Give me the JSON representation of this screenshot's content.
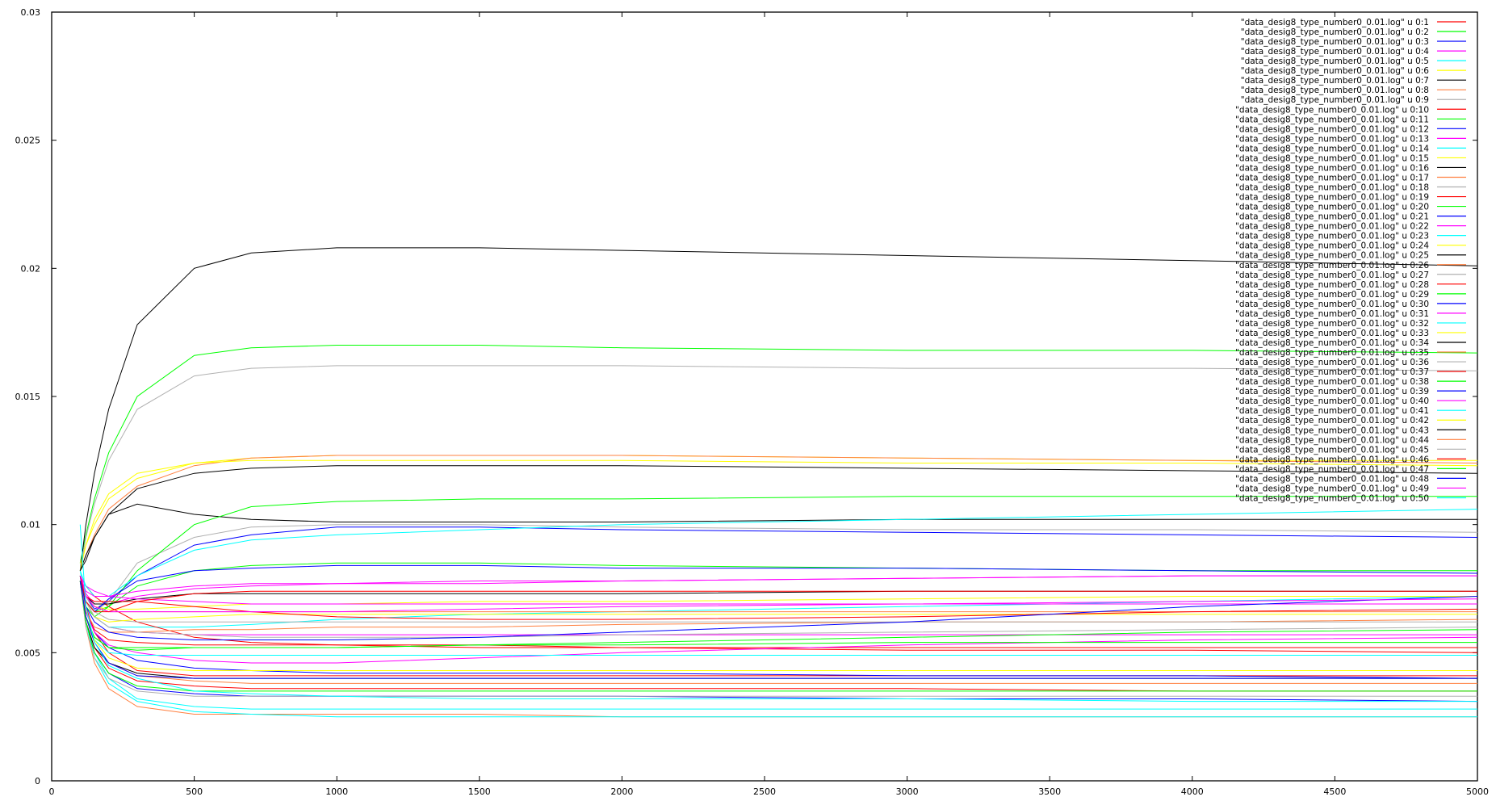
{
  "chart_data": {
    "type": "line",
    "title": "",
    "xlabel": "",
    "ylabel": "",
    "xlim": [
      0,
      5000
    ],
    "ylim": [
      0,
      0.03
    ],
    "x_ticks": [
      "0",
      "500",
      "1000",
      "1500",
      "2000",
      "2500",
      "3000",
      "3500",
      "4000",
      "4500",
      "5000"
    ],
    "y_ticks": [
      "0",
      "0.005",
      "0.01",
      "0.015",
      "0.02",
      "0.025",
      "0.03"
    ],
    "grid": false,
    "legend_position": "top-right",
    "x": [
      100,
      120,
      150,
      200,
      300,
      500,
      700,
      1000,
      1500,
      2000,
      3000,
      4000,
      5000
    ],
    "series": [
      {
        "name": "\"data_desig8_type_number0_0.01.log\" u 0:1",
        "color": "#ff0000",
        "values": [
          0.008,
          0.0068,
          0.0058,
          0.005,
          0.0043,
          0.0041,
          0.0041,
          0.0041,
          0.0041,
          0.0041,
          0.0041,
          0.0041,
          0.0041
        ]
      },
      {
        "name": "\"data_desig8_type_number0_0.01.log\" u 0:2",
        "color": "#00ff00",
        "values": [
          0.0085,
          0.0096,
          0.011,
          0.0128,
          0.015,
          0.0166,
          0.0169,
          0.017,
          0.017,
          0.0169,
          0.0168,
          0.0168,
          0.0167
        ]
      },
      {
        "name": "\"data_desig8_type_number0_0.01.log\" u 0:3",
        "color": "#0000ff",
        "values": [
          0.008,
          0.0072,
          0.0067,
          0.007,
          0.008,
          0.0092,
          0.0096,
          0.0099,
          0.0099,
          0.0098,
          0.0097,
          0.0096,
          0.0095
        ]
      },
      {
        "name": "\"data_desig8_type_number0_0.01.log\" u 0:4",
        "color": "#ff00ff",
        "values": [
          0.008,
          0.0073,
          0.0069,
          0.0069,
          0.0072,
          0.0075,
          0.0076,
          0.0077,
          0.0077,
          0.0078,
          0.0079,
          0.008,
          0.008
        ]
      },
      {
        "name": "\"data_desig8_type_number0_0.01.log\" u 0:5",
        "color": "#00ffff",
        "values": [
          0.008,
          0.0062,
          0.005,
          0.004,
          0.0032,
          0.0029,
          0.0028,
          0.0028,
          0.0028,
          0.0028,
          0.0028,
          0.0028,
          0.0028
        ]
      },
      {
        "name": "\"data_desig8_type_number0_0.01.log\" u 0:6",
        "color": "#ffff00",
        "values": [
          0.0085,
          0.0092,
          0.01,
          0.011,
          0.0118,
          0.0124,
          0.0126,
          0.0127,
          0.0127,
          0.0127,
          0.0126,
          0.0125,
          0.0125
        ]
      },
      {
        "name": "\"data_desig8_type_number0_0.01.log\" u 0:7",
        "color": "#000000",
        "values": [
          0.0082,
          0.01,
          0.012,
          0.0145,
          0.0178,
          0.02,
          0.0206,
          0.0208,
          0.0208,
          0.0207,
          0.0205,
          0.0203,
          0.0201
        ]
      },
      {
        "name": "\"data_desig8_type_number0_0.01.log\" u 0:8",
        "color": "#ff8040",
        "values": [
          0.0082,
          0.0088,
          0.0096,
          0.0106,
          0.0115,
          0.0123,
          0.0126,
          0.0127,
          0.0127,
          0.0127,
          0.0126,
          0.0125,
          0.0124
        ]
      },
      {
        "name": "\"data_desig8_type_number0_0.01.log\" u 0:9",
        "color": "#b0b0b0",
        "values": [
          0.0082,
          0.0095,
          0.0108,
          0.0125,
          0.0145,
          0.0158,
          0.0161,
          0.0162,
          0.0162,
          0.0162,
          0.0161,
          0.0161,
          0.016
        ]
      },
      {
        "name": "\"data_desig8_type_number0_0.01.log\" u 0:10",
        "color": "#ff0000",
        "values": [
          0.0078,
          0.0066,
          0.0059,
          0.0055,
          0.0054,
          0.0053,
          0.0053,
          0.0053,
          0.0053,
          0.0052,
          0.0051,
          0.0051,
          0.005
        ]
      },
      {
        "name": "\"data_desig8_type_number0_0.01.log\" u 0:11",
        "color": "#00ff00",
        "values": [
          0.008,
          0.007,
          0.0066,
          0.0068,
          0.0076,
          0.0082,
          0.0084,
          0.0085,
          0.0085,
          0.0084,
          0.0083,
          0.0082,
          0.0082
        ]
      },
      {
        "name": "\"data_desig8_type_number0_0.01.log\" u 0:12",
        "color": "#0000ff",
        "values": [
          0.0078,
          0.0062,
          0.005,
          0.0042,
          0.0036,
          0.0034,
          0.0033,
          0.0033,
          0.0033,
          0.0033,
          0.0032,
          0.0032,
          0.0031
        ]
      },
      {
        "name": "\"data_desig8_type_number0_0.01.log\" u 0:13",
        "color": "#ff00ff",
        "values": [
          0.008,
          0.007,
          0.0064,
          0.006,
          0.0058,
          0.0057,
          0.0057,
          0.0057,
          0.0057,
          0.0057,
          0.0057,
          0.0057,
          0.0057
        ]
      },
      {
        "name": "\"data_desig8_type_number0_0.01.log\" u 0:14",
        "color": "#00ffff",
        "values": [
          0.0082,
          0.007,
          0.0064,
          0.006,
          0.006,
          0.006,
          0.0061,
          0.0063,
          0.0065,
          0.0066,
          0.0068,
          0.007,
          0.0072
        ]
      },
      {
        "name": "\"data_desig8_type_number0_0.01.log\" u 0:15",
        "color": "#ffff00",
        "values": [
          0.008,
          0.0072,
          0.0068,
          0.0067,
          0.0067,
          0.0068,
          0.0069,
          0.0069,
          0.007,
          0.007,
          0.0071,
          0.0072,
          0.0072
        ]
      },
      {
        "name": "\"data_desig8_type_number0_0.01.log\" u 0:16",
        "color": "#000000",
        "values": [
          0.0082,
          0.0086,
          0.0095,
          0.0104,
          0.0108,
          0.0104,
          0.0102,
          0.0101,
          0.0101,
          0.0101,
          0.0102,
          0.0102,
          0.0102
        ]
      },
      {
        "name": "\"data_desig8_type_number0_0.01.log\" u 0:17",
        "color": "#ff8040",
        "values": [
          0.0078,
          0.006,
          0.0046,
          0.0036,
          0.0029,
          0.0026,
          0.0026,
          0.0026,
          0.0026,
          0.0025,
          0.0025,
          0.0025,
          0.0025
        ]
      },
      {
        "name": "\"data_desig8_type_number0_0.01.log\" u 0:18",
        "color": "#b0b0b0",
        "values": [
          0.008,
          0.007,
          0.0066,
          0.007,
          0.0085,
          0.0095,
          0.0099,
          0.01,
          0.01,
          0.0099,
          0.0098,
          0.0098,
          0.0097
        ]
      },
      {
        "name": "\"data_desig8_type_number0_0.01.log\" u 0:19",
        "color": "#ff0000",
        "values": [
          0.008,
          0.0076,
          0.0072,
          0.0068,
          0.0062,
          0.0056,
          0.0054,
          0.0053,
          0.0052,
          0.0052,
          0.0052,
          0.0052,
          0.0052
        ]
      },
      {
        "name": "\"data_desig8_type_number0_0.01.log\" u 0:20",
        "color": "#00ff00",
        "values": [
          0.008,
          0.0068,
          0.0064,
          0.0068,
          0.0082,
          0.01,
          0.0107,
          0.0109,
          0.011,
          0.011,
          0.0111,
          0.0111,
          0.0111
        ]
      },
      {
        "name": "\"data_desig8_type_number0_0.01.log\" u 0:21",
        "color": "#0000ff",
        "values": [
          0.0078,
          0.0066,
          0.0058,
          0.0052,
          0.0047,
          0.0044,
          0.0043,
          0.0042,
          0.0042,
          0.0042,
          0.0041,
          0.0041,
          0.004
        ]
      },
      {
        "name": "\"data_desig8_type_number0_0.01.log\" u 0:22",
        "color": "#ff00ff",
        "values": [
          0.0078,
          0.0066,
          0.0058,
          0.0053,
          0.005,
          0.0047,
          0.0046,
          0.0046,
          0.0048,
          0.005,
          0.0053,
          0.0055,
          0.0056
        ]
      },
      {
        "name": "\"data_desig8_type_number0_0.01.log\" u 0:23",
        "color": "#00ffff",
        "values": [
          0.0078,
          0.0064,
          0.0055,
          0.005,
          0.0049,
          0.0049,
          0.0049,
          0.0049,
          0.0049,
          0.0049,
          0.0049,
          0.0049,
          0.0049
        ]
      },
      {
        "name": "\"data_desig8_type_number0_0.01.log\" u 0:24",
        "color": "#ffff00",
        "values": [
          0.0078,
          0.0064,
          0.0055,
          0.0048,
          0.0044,
          0.0043,
          0.0043,
          0.0043,
          0.0043,
          0.0043,
          0.0043,
          0.0043,
          0.0043
        ]
      },
      {
        "name": "\"data_desig8_type_number0_0.01.log\" u 0:25",
        "color": "#000000",
        "values": [
          0.008,
          0.0072,
          0.0069,
          0.0069,
          0.0071,
          0.0073,
          0.0073,
          0.0073,
          0.0073,
          0.0073,
          0.0074,
          0.0074,
          0.0074
        ]
      },
      {
        "name": "\"data_desig8_type_number0_0.01.log\" u 0:26",
        "color": "#ff8040",
        "values": [
          0.0078,
          0.0066,
          0.006,
          0.0058,
          0.0058,
          0.0059,
          0.0059,
          0.006,
          0.006,
          0.0061,
          0.0062,
          0.0062,
          0.0063
        ]
      },
      {
        "name": "\"data_desig8_type_number0_0.01.log\" u 0:27",
        "color": "#b0b0b0",
        "values": [
          0.008,
          0.0072,
          0.0066,
          0.0063,
          0.0062,
          0.0062,
          0.0062,
          0.0062,
          0.0062,
          0.0062,
          0.0062,
          0.0062,
          0.0062
        ]
      },
      {
        "name": "\"data_desig8_type_number0_0.01.log\" u 0:28",
        "color": "#ff0000",
        "values": [
          0.0078,
          0.0062,
          0.0052,
          0.0044,
          0.0039,
          0.0037,
          0.0036,
          0.0036,
          0.0036,
          0.0036,
          0.0036,
          0.0035,
          0.0035
        ]
      },
      {
        "name": "\"data_desig8_type_number0_0.01.log\" u 0:29",
        "color": "#00ff00",
        "values": [
          0.0078,
          0.0064,
          0.0056,
          0.0052,
          0.0052,
          0.0052,
          0.0052,
          0.0052,
          0.0053,
          0.0054,
          0.0056,
          0.0058,
          0.0059
        ]
      },
      {
        "name": "\"data_desig8_type_number0_0.01.log\" u 0:30",
        "color": "#0000ff",
        "values": [
          0.008,
          0.007,
          0.0066,
          0.0071,
          0.0078,
          0.0082,
          0.0083,
          0.0084,
          0.0084,
          0.0083,
          0.0083,
          0.0082,
          0.0081
        ]
      },
      {
        "name": "\"data_desig8_type_number0_0.01.log\" u 0:31",
        "color": "#ff00ff",
        "values": [
          0.008,
          0.0076,
          0.0074,
          0.0072,
          0.0071,
          0.007,
          0.0069,
          0.0069,
          0.0069,
          0.0069,
          0.0069,
          0.0069,
          0.0069
        ]
      },
      {
        "name": "\"data_desig8_type_number0_0.01.log\" u 0:32",
        "color": "#00ffff",
        "values": [
          0.0078,
          0.0062,
          0.0048,
          0.0038,
          0.0031,
          0.0027,
          0.0026,
          0.0025,
          0.0025,
          0.0025,
          0.0025,
          0.0025,
          0.0025
        ]
      },
      {
        "name": "\"data_desig8_type_number0_0.01.log\" u 0:33",
        "color": "#ffff00",
        "values": [
          0.008,
          0.007,
          0.0064,
          0.0062,
          0.0063,
          0.0064,
          0.0065,
          0.0065,
          0.0065,
          0.0065,
          0.0065,
          0.0065,
          0.0065
        ]
      },
      {
        "name": "\"data_desig8_type_number0_0.01.log\" u 0:34",
        "color": "#000000",
        "values": [
          0.0078,
          0.0062,
          0.0052,
          0.0046,
          0.0042,
          0.004,
          0.004,
          0.004,
          0.004,
          0.004,
          0.004,
          0.004,
          0.004
        ]
      },
      {
        "name": "\"data_desig8_type_number0_0.01.log\" u 0:35",
        "color": "#ff8040",
        "values": [
          0.008,
          0.0072,
          0.0068,
          0.0066,
          0.0066,
          0.0066,
          0.0066,
          0.0066,
          0.0066,
          0.0066,
          0.0066,
          0.0066,
          0.0066
        ]
      },
      {
        "name": "\"data_desig8_type_number0_0.01.log\" u 0:36",
        "color": "#b0b0b0",
        "values": [
          0.008,
          0.007,
          0.0064,
          0.006,
          0.0058,
          0.0057,
          0.0056,
          0.0056,
          0.0056,
          0.0057,
          0.0058,
          0.0059,
          0.006
        ]
      },
      {
        "name": "\"data_desig8_type_number0_0.01.log\" u 0:37",
        "color": "#ff0000",
        "values": [
          0.008,
          0.0072,
          0.007,
          0.007,
          0.007,
          0.0068,
          0.0066,
          0.0064,
          0.0063,
          0.0063,
          0.0064,
          0.0066,
          0.0067
        ]
      },
      {
        "name": "\"data_desig8_type_number0_0.01.log\" u 0:38",
        "color": "#00ff00",
        "values": [
          0.0078,
          0.0064,
          0.0056,
          0.0052,
          0.0051,
          0.0052,
          0.0052,
          0.0052,
          0.0053,
          0.0053,
          0.0054,
          0.0054,
          0.0054
        ]
      },
      {
        "name": "\"data_desig8_type_number0_0.01.log\" u 0:39",
        "color": "#0000ff",
        "values": [
          0.008,
          0.0068,
          0.0062,
          0.0058,
          0.0056,
          0.0055,
          0.0055,
          0.0055,
          0.0056,
          0.0058,
          0.0062,
          0.0068,
          0.0072
        ]
      },
      {
        "name": "\"data_desig8_type_number0_0.01.log\" u 0:40",
        "color": "#ff00ff",
        "values": [
          0.008,
          0.0072,
          0.0068,
          0.0066,
          0.0066,
          0.0066,
          0.0066,
          0.0066,
          0.0067,
          0.0068,
          0.0069,
          0.007,
          0.0071
        ]
      },
      {
        "name": "\"data_desig8_type_number0_0.01.log\" u 0:41",
        "color": "#00ffff",
        "values": [
          0.0082,
          0.0076,
          0.0072,
          0.0072,
          0.008,
          0.009,
          0.0094,
          0.0096,
          0.0098,
          0.01,
          0.0102,
          0.0104,
          0.0106
        ]
      },
      {
        "name": "\"data_desig8_type_number0_0.01.log\" u 0:42",
        "color": "#ffff00",
        "values": [
          0.0082,
          0.0092,
          0.0102,
          0.0112,
          0.012,
          0.0124,
          0.0125,
          0.0125,
          0.0125,
          0.0125,
          0.0124,
          0.0124,
          0.0123
        ]
      },
      {
        "name": "\"data_desig8_type_number0_0.01.log\" u 0:43",
        "color": "#000000",
        "values": [
          0.0082,
          0.0088,
          0.0095,
          0.0104,
          0.0114,
          0.012,
          0.0122,
          0.0123,
          0.0123,
          0.0123,
          0.0122,
          0.0121,
          0.012
        ]
      },
      {
        "name": "\"data_desig8_type_number0_0.01.log\" u 0:44",
        "color": "#ff8040",
        "values": [
          0.0078,
          0.0064,
          0.0054,
          0.0046,
          0.0041,
          0.0039,
          0.0038,
          0.0038,
          0.0038,
          0.0038,
          0.0038,
          0.0038,
          0.0038
        ]
      },
      {
        "name": "\"data_desig8_type_number0_0.01.log\" u 0:45",
        "color": "#b0b0b0",
        "values": [
          0.0078,
          0.006,
          0.0048,
          0.004,
          0.0035,
          0.0033,
          0.0033,
          0.0033,
          0.0033,
          0.0033,
          0.0033,
          0.0033,
          0.0033
        ]
      },
      {
        "name": "\"data_desig8_type_number0_0.01.log\" u 0:46",
        "color": "#ff0000",
        "values": [
          0.008,
          0.007,
          0.0066,
          0.0066,
          0.007,
          0.0073,
          0.0074,
          0.0074,
          0.0074,
          0.0074,
          0.0074,
          0.0074,
          0.0074
        ]
      },
      {
        "name": "\"data_desig8_type_number0_0.01.log\" u 0:47",
        "color": "#00ff00",
        "values": [
          0.0078,
          0.0062,
          0.005,
          0.0042,
          0.0037,
          0.0035,
          0.0035,
          0.0035,
          0.0035,
          0.0035,
          0.0035,
          0.0035,
          0.0035
        ]
      },
      {
        "name": "\"data_desig8_type_number0_0.01.log\" u 0:48",
        "color": "#0000ff",
        "values": [
          0.0078,
          0.0064,
          0.0054,
          0.0046,
          0.0041,
          0.004,
          0.004,
          0.004,
          0.004,
          0.004,
          0.004,
          0.004,
          0.004
        ]
      },
      {
        "name": "\"data_desig8_type_number0_0.01.log\" u 0:49",
        "color": "#ff00ff",
        "values": [
          0.008,
          0.0074,
          0.0072,
          0.0072,
          0.0074,
          0.0076,
          0.0077,
          0.0077,
          0.0078,
          0.0078,
          0.0079,
          0.008,
          0.008
        ]
      },
      {
        "name": "\"data_desig8_type_number0_0.01.log\" u 0:50",
        "color": "#00ffff",
        "values": [
          0.01,
          0.0068,
          0.0054,
          0.0045,
          0.004,
          0.0035,
          0.0034,
          0.0033,
          0.0032,
          0.0032,
          0.0032,
          0.0031,
          0.0031
        ]
      }
    ]
  }
}
